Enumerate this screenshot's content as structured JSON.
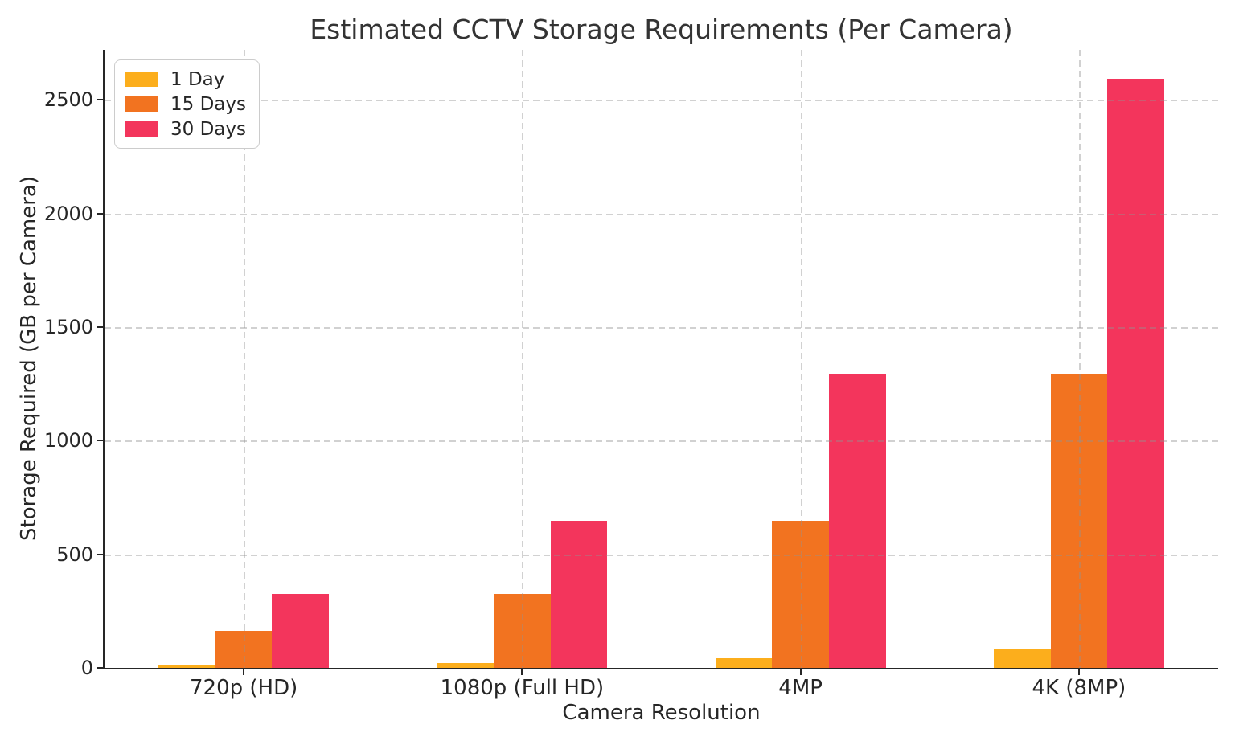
{
  "chart_data": {
    "type": "bar",
    "title": "Estimated CCTV Storage Requirements (Per Camera)",
    "xlabel": "Camera Resolution",
    "ylabel": "Storage Required (GB per Camera)",
    "categories": [
      "720p (HD)",
      "1080p (Full HD)",
      "4MP",
      "4K (8MP)"
    ],
    "series": [
      {
        "name": "1 Day",
        "color": "#FCAE1C",
        "values": [
          10.8,
          21.6,
          43.2,
          86.4
        ]
      },
      {
        "name": "15 Days",
        "color": "#F27320",
        "values": [
          162,
          324,
          648,
          1296
        ]
      },
      {
        "name": "30 Days",
        "color": "#F3355C",
        "values": [
          324,
          648,
          1296,
          2592
        ]
      }
    ],
    "yticks": [
      0,
      500,
      1000,
      1500,
      2000,
      2500
    ],
    "ylim": [
      0,
      2720
    ],
    "grid": true,
    "grid_style": "dashed",
    "legend_position": "upper-left",
    "background_color": "#ffffff",
    "text_color": "#262626"
  }
}
